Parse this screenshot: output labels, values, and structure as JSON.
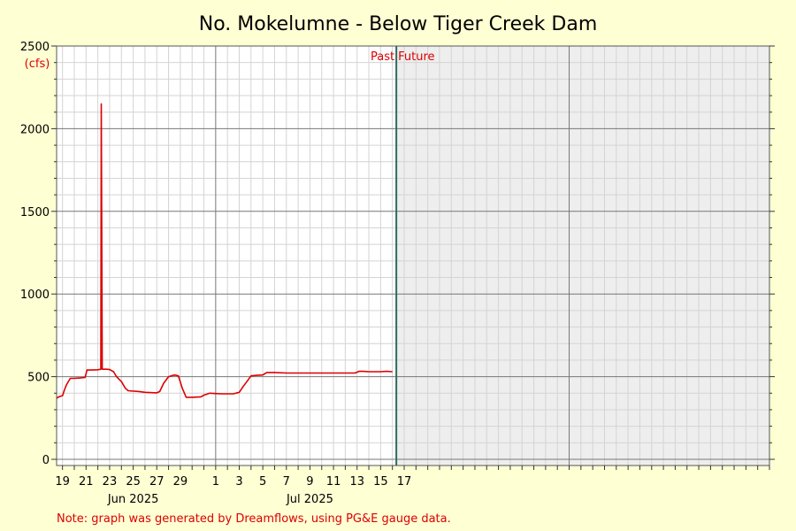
{
  "chart_data": {
    "type": "line",
    "title": "No. Mokelumne - Below Tiger Creek Dam",
    "ylabel": "(cfs)",
    "ylim": [
      0,
      2500
    ],
    "yticks": [
      0,
      500,
      1000,
      1500,
      2000,
      2500
    ],
    "xlim": [
      "2025-05-18T12:00",
      "2025-07-18T00:00"
    ],
    "xticks": [
      {
        "date": "2025-05-19",
        "label": "19"
      },
      {
        "date": "2025-05-21",
        "label": "21"
      },
      {
        "date": "2025-05-23",
        "label": "23"
      },
      {
        "date": "2025-05-25",
        "label": "25"
      },
      {
        "date": "2025-05-27",
        "label": "27"
      },
      {
        "date": "2025-05-29",
        "label": "29"
      },
      {
        "date": "2025-06-01",
        "label": "1"
      },
      {
        "date": "2025-06-03",
        "label": "3"
      },
      {
        "date": "2025-06-05",
        "label": "5"
      },
      {
        "date": "2025-06-07",
        "label": "7"
      },
      {
        "date": "2025-06-09",
        "label": "9"
      },
      {
        "date": "2025-06-11",
        "label": "11"
      },
      {
        "date": "2025-06-13",
        "label": "13"
      },
      {
        "date": "2025-06-15",
        "label": "15"
      },
      {
        "date": "2025-06-17",
        "label": "17"
      }
    ],
    "month_labels": [
      {
        "date": "2025-05-25",
        "label": "Jun 2025"
      },
      {
        "date": "2025-06-09",
        "label": "Jul 2025"
      }
    ],
    "past_label": "Past",
    "future_label": "Future",
    "now": "2025-06-16T08:00",
    "grid": true,
    "series": [
      {
        "color": "#dd0000",
        "points": [
          [
            "2025-05-18T12:00",
            370
          ],
          [
            "2025-05-18T18:00",
            380
          ],
          [
            "2025-05-19T00:00",
            385
          ],
          [
            "2025-05-19T04:00",
            420
          ],
          [
            "2025-05-19T08:00",
            450
          ],
          [
            "2025-05-19T16:00",
            490
          ],
          [
            "2025-05-20T00:00",
            490
          ],
          [
            "2025-05-20T12:00",
            492
          ],
          [
            "2025-05-20T22:00",
            495
          ],
          [
            "2025-05-21T02:00",
            540
          ],
          [
            "2025-05-21T12:00",
            540
          ],
          [
            "2025-05-22T00:00",
            542
          ],
          [
            "2025-05-22T06:00",
            545
          ],
          [
            "2025-05-22T07:00",
            2150
          ],
          [
            "2025-05-22T09:00",
            545
          ],
          [
            "2025-05-22T18:00",
            545
          ],
          [
            "2025-05-23T00:00",
            543
          ],
          [
            "2025-05-23T08:00",
            530
          ],
          [
            "2025-05-23T14:00",
            500
          ],
          [
            "2025-05-24T00:00",
            470
          ],
          [
            "2025-05-24T08:00",
            430
          ],
          [
            "2025-05-24T14:00",
            415
          ],
          [
            "2025-05-25T12:00",
            410
          ],
          [
            "2025-05-26T00:00",
            405
          ],
          [
            "2025-05-27T00:00",
            402
          ],
          [
            "2025-05-27T06:00",
            410
          ],
          [
            "2025-05-27T14:00",
            460
          ],
          [
            "2025-05-28T00:00",
            500
          ],
          [
            "2025-05-28T12:00",
            510
          ],
          [
            "2025-05-28T20:00",
            505
          ],
          [
            "2025-05-29T04:00",
            430
          ],
          [
            "2025-05-29T12:00",
            375
          ],
          [
            "2025-05-30T00:00",
            375
          ],
          [
            "2025-05-30T18:00",
            378
          ],
          [
            "2025-05-31T00:00",
            388
          ],
          [
            "2025-05-31T12:00",
            400
          ],
          [
            "2025-06-01T00:00",
            398
          ],
          [
            "2025-06-01T12:00",
            396
          ],
          [
            "2025-06-02T12:00",
            396
          ],
          [
            "2025-06-03T00:00",
            405
          ],
          [
            "2025-06-03T08:00",
            440
          ],
          [
            "2025-06-03T18:00",
            480
          ],
          [
            "2025-06-04T00:00",
            505
          ],
          [
            "2025-06-04T12:00",
            508
          ],
          [
            "2025-06-05T00:00",
            510
          ],
          [
            "2025-06-05T08:00",
            525
          ],
          [
            "2025-06-06T00:00",
            525
          ],
          [
            "2025-06-07T00:00",
            522
          ],
          [
            "2025-06-08T00:00",
            522
          ],
          [
            "2025-06-09T00:00",
            522
          ],
          [
            "2025-06-10T00:00",
            522
          ],
          [
            "2025-06-11T00:00",
            522
          ],
          [
            "2025-06-12T00:00",
            522
          ],
          [
            "2025-06-12T20:00",
            522
          ],
          [
            "2025-06-13T04:00",
            532
          ],
          [
            "2025-06-13T12:00",
            532
          ],
          [
            "2025-06-14T00:00",
            530
          ],
          [
            "2025-06-15T00:00",
            530
          ],
          [
            "2025-06-15T12:00",
            532
          ],
          [
            "2025-06-16T00:00",
            530
          ]
        ]
      }
    ]
  },
  "footnote": "Note: graph was generated by Dreamflows, using PG&E gauge data."
}
